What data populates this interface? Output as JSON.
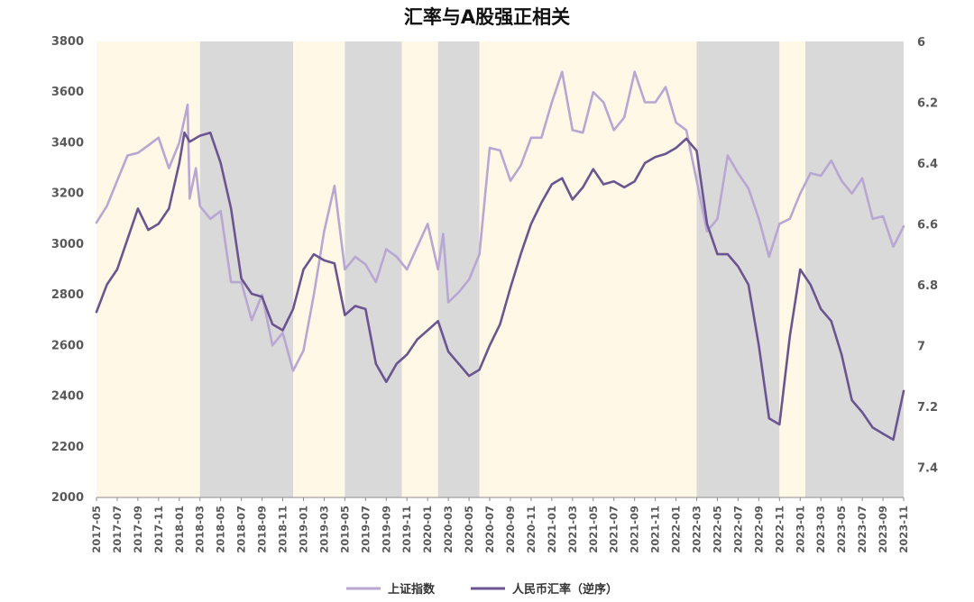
{
  "chart_data": {
    "type": "line",
    "title": "汇率与A股强正相关",
    "xlabel": "",
    "ylabel_left": "",
    "ylabel_right": "",
    "y_left_range": [
      2000,
      3800
    ],
    "y_left_ticks": [
      2000,
      2200,
      2400,
      2600,
      2800,
      3000,
      3200,
      3400,
      3600,
      3800
    ],
    "y_right_range_inverted": [
      6.0,
      7.5
    ],
    "y_right_ticks": [
      6,
      6.2,
      6.4,
      6.6,
      6.8,
      7,
      7.2,
      7.4
    ],
    "y_right_tick_labels": [
      "6",
      "6.2",
      "6.4",
      "6.6",
      "6.8",
      "7",
      "7.2",
      "7.4"
    ],
    "x_range": [
      "2017-05",
      "2023-11"
    ],
    "x_tick_labels": [
      "2017-05",
      "2017-07",
      "2017-09",
      "2017-11",
      "2018-01",
      "2018-03",
      "2018-05",
      "2018-07",
      "2018-09",
      "2018-11",
      "2019-01",
      "2019-03",
      "2019-05",
      "2019-07",
      "2019-09",
      "2019-11",
      "2020-01",
      "2020-03",
      "2020-05",
      "2020-07",
      "2020-09",
      "2020-11",
      "2021-01",
      "2021-03",
      "2021-05",
      "2021-07",
      "2021-09",
      "2021-11",
      "2022-01",
      "2022-03",
      "2022-05",
      "2022-07",
      "2022-09",
      "2022-11",
      "2023-01",
      "2023-03",
      "2023-05",
      "2023-07",
      "2023-09",
      "2023-11"
    ],
    "shaded_regions": [
      {
        "start": "2017-05",
        "end": "2018-03",
        "color": "#FFF8E7"
      },
      {
        "start": "2018-03",
        "end": "2018-12",
        "color": "#D9D9D9"
      },
      {
        "start": "2018-12",
        "end": "2019-05",
        "color": "#FFF8E7"
      },
      {
        "start": "2019-05",
        "end": "2019-10.5",
        "color": "#D9D9D9"
      },
      {
        "start": "2019-10.5",
        "end": "2020-02",
        "color": "#FFF8E7"
      },
      {
        "start": "2020-02",
        "end": "2020-06",
        "color": "#D9D9D9"
      },
      {
        "start": "2020-06",
        "end": "2022-03",
        "color": "#FFF8E7"
      },
      {
        "start": "2022-03",
        "end": "2022-11",
        "color": "#D9D9D9"
      },
      {
        "start": "2022-11",
        "end": "2023-01.5",
        "color": "#FFF8E7"
      },
      {
        "start": "2023-01.5",
        "end": "2023-11",
        "color": "#D9D9D9"
      }
    ],
    "series": [
      {
        "name": "上证指数",
        "axis": "left",
        "color": "#B8A6D3",
        "points": [
          [
            "2017-05",
            3085
          ],
          [
            "2017-06",
            3150
          ],
          [
            "2017-07",
            3250
          ],
          [
            "2017-08",
            3350
          ],
          [
            "2017-09",
            3360
          ],
          [
            "2017-10",
            3390
          ],
          [
            "2017-11",
            3420
          ],
          [
            "2017-12",
            3300
          ],
          [
            "2018-01",
            3400
          ],
          [
            "2018-01.8",
            3550
          ],
          [
            "2018-02",
            3180
          ],
          [
            "2018-02.6",
            3300
          ],
          [
            "2018-03",
            3150
          ],
          [
            "2018-04",
            3100
          ],
          [
            "2018-05",
            3130
          ],
          [
            "2018-06",
            2850
          ],
          [
            "2018-07",
            2850
          ],
          [
            "2018-08",
            2700
          ],
          [
            "2018-09",
            2800
          ],
          [
            "2018-10",
            2600
          ],
          [
            "2018-11",
            2650
          ],
          [
            "2018-12",
            2500
          ],
          [
            "2019-01",
            2580
          ],
          [
            "2019-02",
            2800
          ],
          [
            "2019-03",
            3050
          ],
          [
            "2019-04",
            3230
          ],
          [
            "2019-05",
            2900
          ],
          [
            "2019-06",
            2950
          ],
          [
            "2019-07",
            2920
          ],
          [
            "2019-08",
            2850
          ],
          [
            "2019-09",
            2980
          ],
          [
            "2019-10",
            2950
          ],
          [
            "2019-11",
            2900
          ],
          [
            "2019-12",
            2990
          ],
          [
            "2020-01",
            3080
          ],
          [
            "2020-02",
            2900
          ],
          [
            "2020-02.5",
            3040
          ],
          [
            "2020-03",
            2770
          ],
          [
            "2020-04",
            2810
          ],
          [
            "2020-05",
            2860
          ],
          [
            "2020-06",
            2960
          ],
          [
            "2020-07",
            3380
          ],
          [
            "2020-08",
            3370
          ],
          [
            "2020-09",
            3250
          ],
          [
            "2020-10",
            3310
          ],
          [
            "2020-11",
            3420
          ],
          [
            "2020-12",
            3420
          ],
          [
            "2021-01",
            3560
          ],
          [
            "2021-02",
            3680
          ],
          [
            "2021-03",
            3450
          ],
          [
            "2021-04",
            3440
          ],
          [
            "2021-05",
            3600
          ],
          [
            "2021-06",
            3560
          ],
          [
            "2021-07",
            3450
          ],
          [
            "2021-08",
            3500
          ],
          [
            "2021-09",
            3680
          ],
          [
            "2021-10",
            3560
          ],
          [
            "2021-11",
            3560
          ],
          [
            "2021-12",
            3620
          ],
          [
            "2022-01",
            3480
          ],
          [
            "2022-02",
            3450
          ],
          [
            "2022-03",
            3250
          ],
          [
            "2022-04",
            3050
          ],
          [
            "2022-05",
            3100
          ],
          [
            "2022-06",
            3350
          ],
          [
            "2022-07",
            3280
          ],
          [
            "2022-08",
            3220
          ],
          [
            "2022-09",
            3100
          ],
          [
            "2022-10",
            2950
          ],
          [
            "2022-11",
            3080
          ],
          [
            "2022-12",
            3100
          ],
          [
            "2023-01",
            3200
          ],
          [
            "2023-02",
            3280
          ],
          [
            "2023-03",
            3270
          ],
          [
            "2023-04",
            3330
          ],
          [
            "2023-05",
            3250
          ],
          [
            "2023-06",
            3200
          ],
          [
            "2023-07",
            3260
          ],
          [
            "2023-08",
            3100
          ],
          [
            "2023-09",
            3110
          ],
          [
            "2023-10",
            2990
          ],
          [
            "2023-11",
            3070
          ]
        ]
      },
      {
        "name": "人民币汇率（逆序）",
        "axis": "right",
        "color": "#6B5590",
        "points": [
          [
            "2017-05",
            6.89
          ],
          [
            "2017-06",
            6.8
          ],
          [
            "2017-07",
            6.75
          ],
          [
            "2017-08",
            6.65
          ],
          [
            "2017-09",
            6.55
          ],
          [
            "2017-10",
            6.62
          ],
          [
            "2017-11",
            6.6
          ],
          [
            "2017-12",
            6.55
          ],
          [
            "2018-01",
            6.4
          ],
          [
            "2018-01.5",
            6.3
          ],
          [
            "2018-02",
            6.33
          ],
          [
            "2018-03",
            6.31
          ],
          [
            "2018-04",
            6.3
          ],
          [
            "2018-05",
            6.4
          ],
          [
            "2018-06",
            6.55
          ],
          [
            "2018-07",
            6.78
          ],
          [
            "2018-08",
            6.83
          ],
          [
            "2018-09",
            6.84
          ],
          [
            "2018-10",
            6.93
          ],
          [
            "2018-11",
            6.95
          ],
          [
            "2018-12",
            6.88
          ],
          [
            "2019-01",
            6.75
          ],
          [
            "2019-02",
            6.7
          ],
          [
            "2019-03",
            6.72
          ],
          [
            "2019-04",
            6.73
          ],
          [
            "2019-05",
            6.9
          ],
          [
            "2019-06",
            6.87
          ],
          [
            "2019-07",
            6.88
          ],
          [
            "2019-08",
            7.06
          ],
          [
            "2019-09",
            7.12
          ],
          [
            "2019-10",
            7.06
          ],
          [
            "2019-11",
            7.03
          ],
          [
            "2019-12",
            6.98
          ],
          [
            "2020-01",
            6.95
          ],
          [
            "2020-02",
            6.92
          ],
          [
            "2020-02.5",
            6.97
          ],
          [
            "2020-03",
            7.02
          ],
          [
            "2020-04",
            7.06
          ],
          [
            "2020-05",
            7.1
          ],
          [
            "2020-06",
            7.08
          ],
          [
            "2020-07",
            7.0
          ],
          [
            "2020-08",
            6.93
          ],
          [
            "2020-09",
            6.81
          ],
          [
            "2020-10",
            6.7
          ],
          [
            "2020-11",
            6.6
          ],
          [
            "2020-12",
            6.53
          ],
          [
            "2021-01",
            6.47
          ],
          [
            "2021-02",
            6.45
          ],
          [
            "2021-03",
            6.52
          ],
          [
            "2021-04",
            6.48
          ],
          [
            "2021-05",
            6.42
          ],
          [
            "2021-06",
            6.47
          ],
          [
            "2021-07",
            6.46
          ],
          [
            "2021-08",
            6.48
          ],
          [
            "2021-09",
            6.46
          ],
          [
            "2021-10",
            6.4
          ],
          [
            "2021-11",
            6.38
          ],
          [
            "2021-12",
            6.37
          ],
          [
            "2022-01",
            6.35
          ],
          [
            "2022-02",
            6.32
          ],
          [
            "2022-03",
            6.36
          ],
          [
            "2022-04",
            6.6
          ],
          [
            "2022-05",
            6.7
          ],
          [
            "2022-06",
            6.7
          ],
          [
            "2022-07",
            6.74
          ],
          [
            "2022-08",
            6.8
          ],
          [
            "2022-09",
            7.0
          ],
          [
            "2022-10",
            7.24
          ],
          [
            "2022-11",
            7.26
          ],
          [
            "2022-12",
            6.97
          ],
          [
            "2023-01",
            6.75
          ],
          [
            "2023-02",
            6.8
          ],
          [
            "2023-03",
            6.88
          ],
          [
            "2023-04",
            6.92
          ],
          [
            "2023-05",
            7.03
          ],
          [
            "2023-06",
            7.18
          ],
          [
            "2023-07",
            7.22
          ],
          [
            "2023-08",
            7.27
          ],
          [
            "2023-09",
            7.29
          ],
          [
            "2023-10",
            7.31
          ],
          [
            "2023-11",
            7.15
          ]
        ]
      }
    ],
    "legend": {
      "position": "bottom-right",
      "items": [
        {
          "label": "上证指数",
          "color": "#B8A6D3"
        },
        {
          "label": "人民币汇率（逆序）",
          "color": "#6B5590"
        }
      ]
    }
  }
}
